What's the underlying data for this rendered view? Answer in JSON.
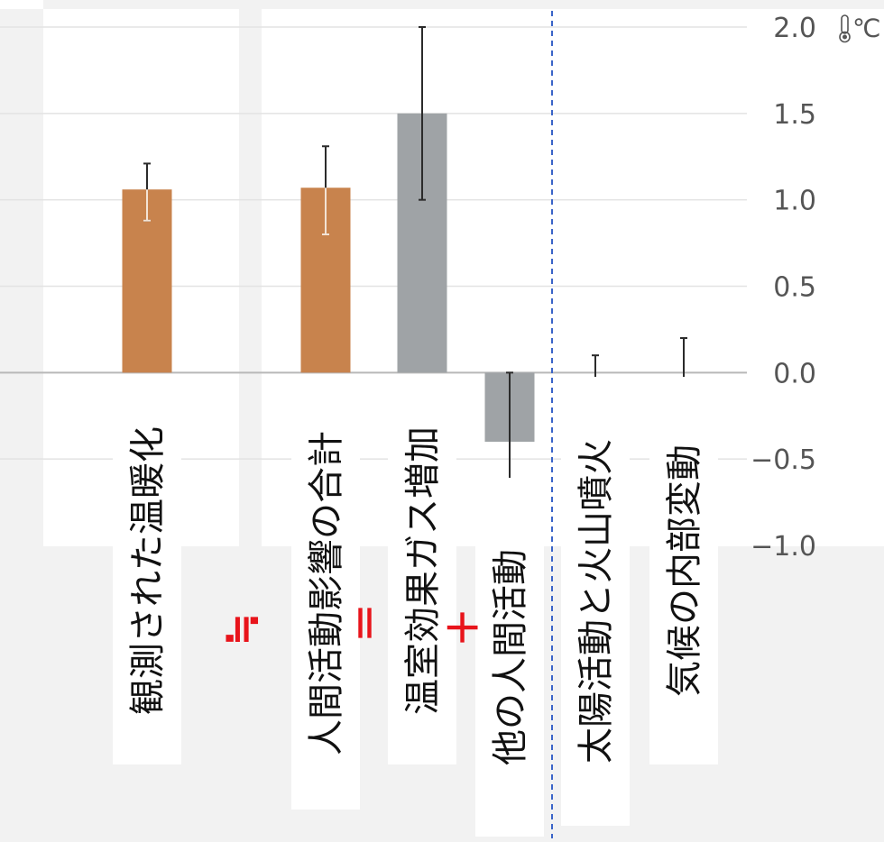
{
  "chart_data": {
    "type": "bar",
    "categories": [
      "観測された温暖化",
      "人間活動影響の合計",
      "温室効果ガス増加",
      "他の人間活動",
      "太陽活動と火山噴火",
      "気候の内部変動"
    ],
    "values": [
      1.06,
      1.07,
      1.5,
      -0.4,
      0.0,
      0.0
    ],
    "error_low": [
      0.88,
      0.8,
      1.0,
      -0.7,
      -0.1,
      -0.2
    ],
    "error_high": [
      1.21,
      1.31,
      2.0,
      0.0,
      0.1,
      0.2
    ],
    "unit": "℃",
    "ylim": [
      -1.0,
      2.0
    ],
    "yticks": [
      2.0,
      1.5,
      1.0,
      0.5,
      0.0,
      -0.5,
      -1.0
    ],
    "ytick_labels": [
      "2.0",
      "1.5",
      "1.0",
      "0.5",
      "0.0",
      "−0.5",
      "−1.0"
    ],
    "grid": true,
    "colors": {
      "observed": "#C8834D",
      "human_total": "#C8834D",
      "components": "#9FA3A6",
      "symbols": "#E8141B",
      "divider": "#3A64C8"
    },
    "symbols": [
      "≒",
      "＝",
      "＋"
    ],
    "icons": {
      "unit_icon": "thermometer-icon"
    }
  }
}
